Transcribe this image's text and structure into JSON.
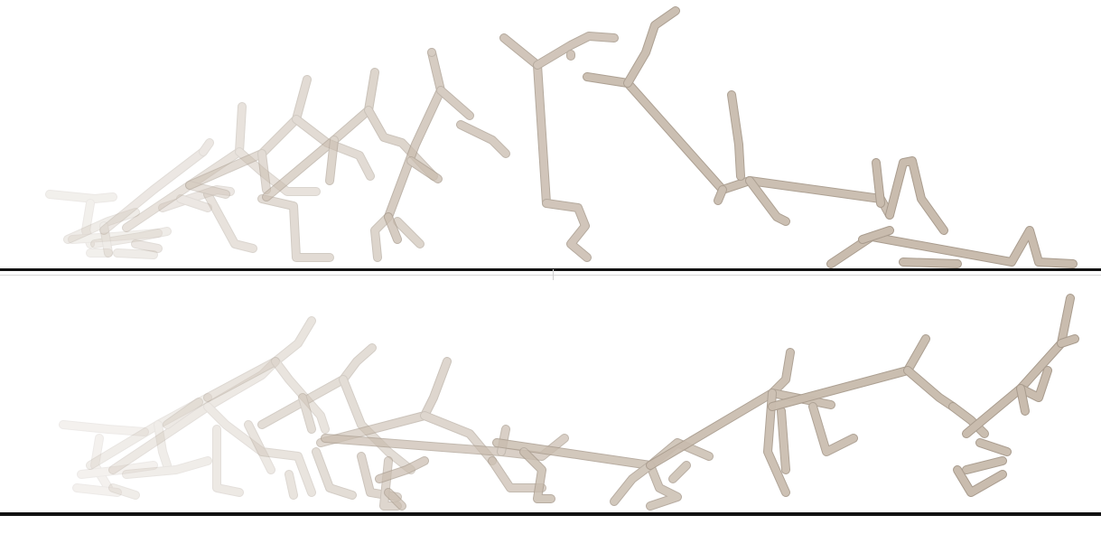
{
  "scene": {
    "background_color": "#ffffff",
    "limb_color": "#c9bcae",
    "limb_shadow_color": "#a99c8e",
    "ground_color": "#111111",
    "panels": [
      {
        "label": "",
        "frame_count": 10
      },
      {
        "label": "",
        "frame_count": 11
      }
    ]
  }
}
